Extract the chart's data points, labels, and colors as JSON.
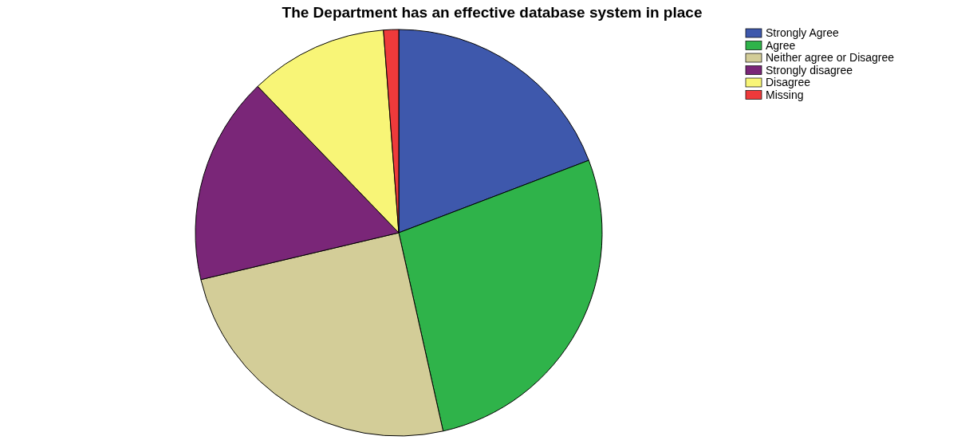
{
  "chart_data": {
    "type": "pie",
    "title": "The Department has an effective database system in place",
    "categories": [
      "Strongly Agree",
      "Agree",
      "Neither agree or Disagree",
      "Strongly disagree",
      "Disagree",
      "Missing"
    ],
    "values": [
      19.2,
      27.3,
      24.8,
      16.5,
      11,
      1.2
    ],
    "colors": [
      "#3e58ac",
      "#2fb34a",
      "#d3cd98",
      "#7a2678",
      "#f8f577",
      "#ee3a3b"
    ],
    "legend": "top right"
  }
}
